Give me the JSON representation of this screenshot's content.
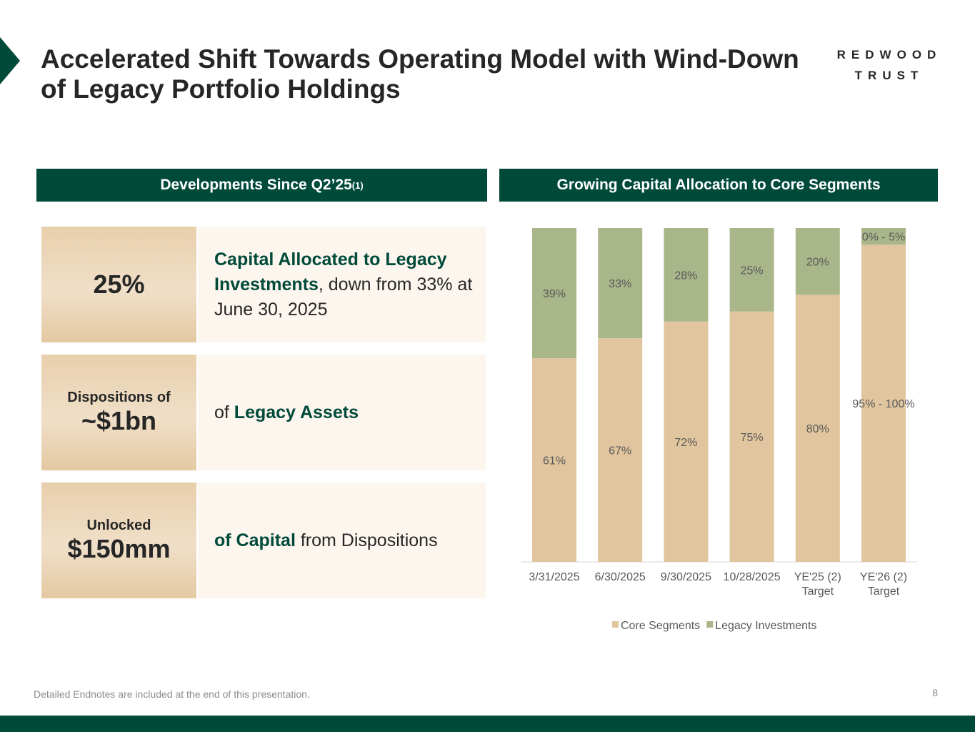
{
  "header": {
    "title": "Accelerated Shift Towards Operating Model with Wind-Down of Legacy Portfolio Holdings",
    "logo_line1": "REDWOOD",
    "logo_line2": "TRUST"
  },
  "left_panel": {
    "heading": "Developments Since Q2’25",
    "heading_note": "(1)",
    "cards": [
      {
        "stat": "25%",
        "desc_bold": "Capital Allocated to Legacy Investments",
        "desc_rest": ", down from 33% at June 30, 2025"
      },
      {
        "stat_label": "Dispositions of",
        "stat": "~$1bn",
        "desc_pre": "of ",
        "desc_bold": "Legacy Assets"
      },
      {
        "stat_label": "Unlocked",
        "stat": "$150mm",
        "desc_bold": "of Capital",
        "desc_rest": " from Dispositions"
      }
    ]
  },
  "right_panel": {
    "heading": "Growing Capital Allocation to Core Segments"
  },
  "chart_data": {
    "type": "bar",
    "stacked": true,
    "categories": [
      "3/31/2025",
      "6/30/2025",
      "9/30/2025",
      "10/28/2025",
      "YE'25 Target",
      "YE'26 Target"
    ],
    "category_notes": [
      "",
      "",
      "",
      "",
      "(2)",
      "(2)"
    ],
    "series": [
      {
        "name": "Core Segments",
        "color": "#e0c59e",
        "values": [
          61,
          67,
          72,
          75,
          80,
          95
        ],
        "labels": [
          "61%",
          "67%",
          "72%",
          "75%",
          "80%",
          "95% - 100%"
        ]
      },
      {
        "name": "Legacy Investments",
        "color": "#a9b68a",
        "values": [
          39,
          33,
          28,
          25,
          20,
          5
        ],
        "labels": [
          "39%",
          "33%",
          "28%",
          "25%",
          "20%",
          "0% - 5%"
        ]
      }
    ],
    "ylim": [
      0,
      100
    ],
    "grid": false,
    "legend": "bottom"
  },
  "footer": {
    "note": "Detailed Endnotes are included at the end of this presentation.",
    "page": "8"
  },
  "colors": {
    "brand": "#004a3a"
  }
}
